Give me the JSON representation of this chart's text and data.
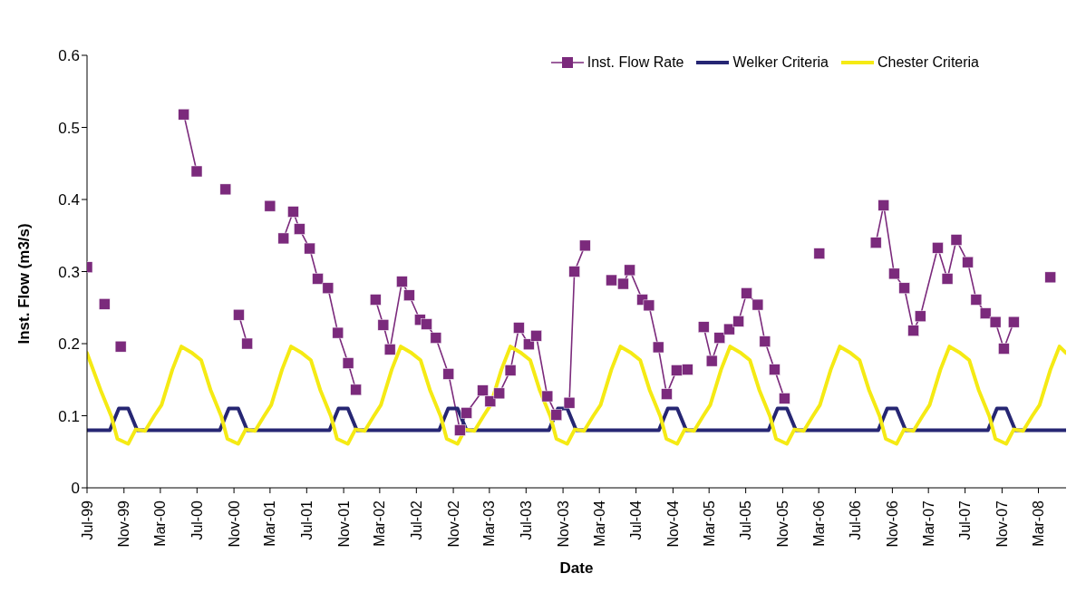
{
  "chart_data": {
    "type": "line",
    "xlabel": "Date",
    "ylabel": "Inst. Flow (m3/s)",
    "xlim": [
      "1999-07-01",
      "2008-06-01"
    ],
    "xticks": [
      {
        "value": "1999-07-01",
        "label": "Jul-99"
      },
      {
        "value": "1999-11-01",
        "label": "Nov-99"
      },
      {
        "value": "2000-03-01",
        "label": "Mar-00"
      },
      {
        "value": "2000-07-01",
        "label": "Jul-00"
      },
      {
        "value": "2000-11-01",
        "label": "Nov-00"
      },
      {
        "value": "2001-03-01",
        "label": "Mar-01"
      },
      {
        "value": "2001-07-01",
        "label": "Jul-01"
      },
      {
        "value": "2001-11-01",
        "label": "Nov-01"
      },
      {
        "value": "2002-03-01",
        "label": "Mar-02"
      },
      {
        "value": "2002-07-01",
        "label": "Jul-02"
      },
      {
        "value": "2002-11-01",
        "label": "Nov-02"
      },
      {
        "value": "2003-03-01",
        "label": "Mar-03"
      },
      {
        "value": "2003-07-01",
        "label": "Jul-03"
      },
      {
        "value": "2003-11-01",
        "label": "Nov-03"
      },
      {
        "value": "2004-03-01",
        "label": "Mar-04"
      },
      {
        "value": "2004-07-01",
        "label": "Jul-04"
      },
      {
        "value": "2004-11-01",
        "label": "Nov-04"
      },
      {
        "value": "2005-03-01",
        "label": "Mar-05"
      },
      {
        "value": "2005-07-01",
        "label": "Jul-05"
      },
      {
        "value": "2005-11-01",
        "label": "Nov-05"
      },
      {
        "value": "2006-03-01",
        "label": "Mar-06"
      },
      {
        "value": "2006-07-01",
        "label": "Jul-06"
      },
      {
        "value": "2006-11-01",
        "label": "Nov-06"
      },
      {
        "value": "2007-03-01",
        "label": "Mar-07"
      },
      {
        "value": "2007-07-01",
        "label": "Jul-07"
      },
      {
        "value": "2007-11-01",
        "label": "Nov-07"
      },
      {
        "value": "2008-03-01",
        "label": "Mar-08"
      }
    ],
    "ylim": [
      0,
      0.6
    ],
    "yticks": [
      0,
      0.1,
      0.2,
      0.3,
      0.4,
      0.5,
      0.6
    ],
    "grid": false,
    "legend": "top right",
    "series": [
      {
        "name": "Inst. Flow Rate",
        "color": "#7b2a7c",
        "marker": "square",
        "line_style": "solid",
        "x": [
          "1999-07-01",
          "1999-07-30",
          "1999-08-28",
          "1999-09-25",
          "1999-10-21",
          "2000-02-01",
          "2000-05-18",
          "2000-06-30",
          "2000-08-15",
          "2000-10-04",
          "2000-10-25",
          "2000-11-17",
          "2000-12-15",
          "2001-01-20",
          "2001-03-01",
          "2001-03-25",
          "2001-04-15",
          "2001-05-17",
          "2001-06-07",
          "2001-07-11",
          "2001-08-07",
          "2001-09-10",
          "2001-10-13",
          "2001-11-16",
          "2001-12-12",
          "2002-01-15",
          "2002-02-15",
          "2002-03-13",
          "2002-04-04",
          "2002-05-14",
          "2002-06-07",
          "2002-07-13",
          "2002-08-04",
          "2002-09-04",
          "2002-10-16",
          "2002-11-23",
          "2002-12-15",
          "2003-02-07",
          "2003-03-04",
          "2003-04-03",
          "2003-05-10",
          "2003-06-07",
          "2003-07-10",
          "2003-08-04",
          "2003-09-10",
          "2003-10-10",
          "2003-11-22",
          "2003-12-09",
          "2004-01-13",
          "2004-02-25",
          "2004-04-10",
          "2004-04-30",
          "2004-05-19",
          "2004-06-10",
          "2004-07-22",
          "2004-08-13",
          "2004-09-13",
          "2004-10-11",
          "2004-11-13",
          "2004-12-19",
          "2005-01-15",
          "2005-02-11",
          "2005-03-10",
          "2005-04-05",
          "2005-05-07",
          "2005-06-07",
          "2005-07-04",
          "2005-08-10",
          "2005-09-03",
          "2005-10-05",
          "2005-11-07",
          "2006-01-01",
          "2006-03-03",
          "2006-06-01",
          "2006-09-07",
          "2006-10-03",
          "2006-11-07",
          "2006-12-11",
          "2007-01-10",
          "2007-02-02",
          "2007-04-01",
          "2007-05-03",
          "2007-06-02",
          "2007-07-10",
          "2007-08-07",
          "2007-09-07",
          "2007-10-10",
          "2007-11-07",
          "2007-12-10",
          "2008-02-01",
          "2008-04-10"
        ],
        "values": [
          0.306,
          null,
          0.255,
          null,
          0.196,
          null,
          0.518,
          0.439,
          null,
          0.414,
          null,
          0.24,
          0.2,
          null,
          0.391,
          null,
          0.346,
          0.383,
          0.359,
          0.332,
          0.29,
          0.277,
          0.215,
          0.173,
          0.136,
          null,
          0.261,
          0.226,
          0.192,
          0.286,
          0.267,
          0.233,
          0.227,
          0.208,
          0.158,
          0.08,
          0.104,
          0.135,
          0.12,
          0.131,
          0.163,
          0.222,
          0.199,
          0.211,
          0.127,
          0.101,
          0.118,
          0.3,
          0.336,
          null,
          0.288,
          null,
          0.283,
          0.302,
          0.261,
          0.253,
          0.195,
          0.13,
          0.163,
          0.164,
          null,
          0.223,
          0.176,
          0.208,
          0.22,
          0.231,
          0.27,
          0.254,
          0.203,
          0.164,
          0.124,
          null,
          0.325,
          null,
          0.34,
          0.392,
          0.297,
          0.277,
          0.218,
          0.238,
          0.333,
          0.29,
          0.344,
          0.313,
          0.261,
          0.242,
          0.23,
          0.193,
          0.23,
          null,
          0.292
        ]
      },
      {
        "name": "Welker Criteria",
        "color": "#262673",
        "marker": "none",
        "line_style": "solid",
        "x": [
          "1999-07-01",
          "1999-09-15",
          "1999-10-15",
          "1999-11-15",
          "1999-12-15",
          "2000-09-15",
          "2000-10-15",
          "2000-11-15",
          "2000-12-15",
          "2001-09-15",
          "2001-10-15",
          "2001-11-15",
          "2001-12-15",
          "2002-09-15",
          "2002-10-15",
          "2002-11-15",
          "2002-12-15",
          "2003-09-15",
          "2003-10-15",
          "2003-11-15",
          "2003-12-15",
          "2004-09-15",
          "2004-10-15",
          "2004-11-15",
          "2004-12-15",
          "2005-09-15",
          "2005-10-15",
          "2005-11-15",
          "2005-12-15",
          "2006-09-15",
          "2006-10-15",
          "2006-11-15",
          "2006-12-15",
          "2007-09-15",
          "2007-10-15",
          "2007-11-15",
          "2007-12-15",
          "2008-06-01"
        ],
        "values": [
          0.08,
          0.08,
          0.11,
          0.11,
          0.08,
          0.08,
          0.11,
          0.11,
          0.08,
          0.08,
          0.11,
          0.11,
          0.08,
          0.08,
          0.11,
          0.11,
          0.08,
          0.08,
          0.11,
          0.11,
          0.08,
          0.08,
          0.11,
          0.11,
          0.08,
          0.08,
          0.11,
          0.11,
          0.08,
          0.08,
          0.11,
          0.11,
          0.08,
          0.08,
          0.11,
          0.11,
          0.08,
          0.08
        ]
      },
      {
        "name": "Chester Criteria",
        "color": "#f5ea14",
        "marker": "none",
        "line_style": "solid",
        "x": [
          "1999-07-01",
          "1999-08-15",
          "1999-09-20",
          "1999-10-10",
          "1999-11-15",
          "1999-12-10",
          "2000-01-10",
          "2000-02-10",
          "2000-03-05",
          "2000-04-10",
          "2000-05-10",
          "2000-06-15",
          "2000-07-15",
          "2000-08-15",
          "2000-09-20",
          "2000-10-10",
          "2000-11-15",
          "2000-12-10",
          "2001-01-10",
          "2001-02-10",
          "2001-03-05",
          "2001-04-10",
          "2001-05-10",
          "2001-06-15",
          "2001-07-15",
          "2001-08-15",
          "2001-09-20",
          "2001-10-10",
          "2001-11-15",
          "2001-12-10",
          "2002-01-10",
          "2002-02-10",
          "2002-03-05",
          "2002-04-10",
          "2002-05-10",
          "2002-06-15",
          "2002-07-15",
          "2002-08-15",
          "2002-09-20",
          "2002-10-10",
          "2002-11-15",
          "2002-12-10",
          "2003-01-10",
          "2003-02-10",
          "2003-03-05",
          "2003-04-10",
          "2003-05-10",
          "2003-06-15",
          "2003-07-15",
          "2003-08-15",
          "2003-09-20",
          "2003-10-10",
          "2003-11-15",
          "2003-12-10",
          "2004-01-10",
          "2004-02-10",
          "2004-03-05",
          "2004-04-10",
          "2004-05-10",
          "2004-06-15",
          "2004-07-15",
          "2004-08-15",
          "2004-09-20",
          "2004-10-10",
          "2004-11-15",
          "2004-12-10",
          "2005-01-10",
          "2005-02-10",
          "2005-03-05",
          "2005-04-10",
          "2005-05-10",
          "2005-06-15",
          "2005-07-15",
          "2005-08-15",
          "2005-09-20",
          "2005-10-10",
          "2005-11-15",
          "2005-12-10",
          "2006-01-10",
          "2006-02-10",
          "2006-03-05",
          "2006-04-10",
          "2006-05-10",
          "2006-06-15",
          "2006-07-15",
          "2006-08-15",
          "2006-09-20",
          "2006-10-10",
          "2006-11-15",
          "2006-12-10",
          "2007-01-10",
          "2007-02-10",
          "2007-03-05",
          "2007-04-10",
          "2007-05-10",
          "2007-06-15",
          "2007-07-15",
          "2007-08-15",
          "2007-09-20",
          "2007-10-10",
          "2007-11-15",
          "2007-12-10",
          "2008-01-10",
          "2008-02-10",
          "2008-03-05",
          "2008-04-10",
          "2008-05-10",
          "2008-06-01"
        ],
        "values": [
          0.187,
          0.136,
          0.099,
          0.068,
          0.061,
          0.081,
          0.079,
          0.1,
          0.115,
          0.164,
          0.196,
          0.187,
          0.177,
          0.136,
          0.099,
          0.068,
          0.061,
          0.081,
          0.079,
          0.1,
          0.115,
          0.164,
          0.196,
          0.187,
          0.177,
          0.136,
          0.099,
          0.068,
          0.061,
          0.081,
          0.079,
          0.1,
          0.115,
          0.164,
          0.196,
          0.187,
          0.177,
          0.136,
          0.099,
          0.068,
          0.061,
          0.081,
          0.079,
          0.1,
          0.115,
          0.164,
          0.196,
          0.187,
          0.177,
          0.136,
          0.099,
          0.068,
          0.061,
          0.081,
          0.079,
          0.1,
          0.115,
          0.164,
          0.196,
          0.187,
          0.177,
          0.136,
          0.099,
          0.068,
          0.061,
          0.081,
          0.079,
          0.1,
          0.115,
          0.164,
          0.196,
          0.187,
          0.177,
          0.136,
          0.099,
          0.068,
          0.061,
          0.081,
          0.079,
          0.1,
          0.115,
          0.164,
          0.196,
          0.187,
          0.177,
          0.136,
          0.099,
          0.068,
          0.061,
          0.081,
          0.079,
          0.1,
          0.115,
          0.164,
          0.196,
          0.187,
          0.177,
          0.136,
          0.099,
          0.068,
          0.061,
          0.081,
          0.079,
          0.1,
          0.115,
          0.164,
          0.196,
          0.187
        ]
      }
    ]
  }
}
